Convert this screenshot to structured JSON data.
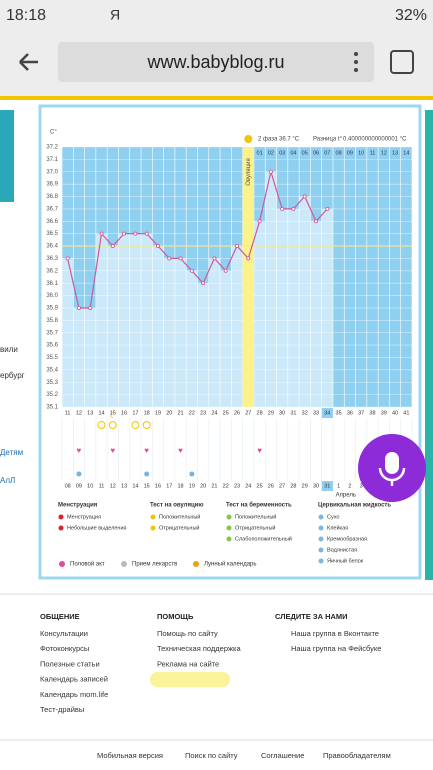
{
  "status_bar": {
    "time": "18:18",
    "carrier": "Я",
    "battery": "32%"
  },
  "browser": {
    "url": "www.babyblog.ru"
  },
  "left_fragments": [
    "вили",
    "ербург",
    "Детям",
    "АлЛ"
  ],
  "chart": {
    "type": "line",
    "y_unit": "C°",
    "phase_label": "2 фаза",
    "phase_temp": "36.7 °C",
    "diff_label": "Разница t°",
    "diff_value": "0.400000000000001 °C",
    "ovulation_label": "Овуляция",
    "days": [
      11,
      12,
      13,
      14,
      15,
      16,
      17,
      18,
      19,
      20,
      21,
      22,
      23,
      24,
      25,
      26,
      27,
      28,
      29,
      30,
      31,
      32,
      33,
      34,
      35,
      36,
      37,
      38,
      39,
      40,
      41
    ],
    "phase_days": [
      "01",
      "02",
      "03",
      "04",
      "05",
      "06",
      "07",
      "08",
      "09",
      "10",
      "11",
      "12",
      "13",
      "14"
    ],
    "dates": [
      "08",
      "09",
      "10",
      "11",
      "12",
      "13",
      "14",
      "15",
      "16",
      "17",
      "18",
      "19",
      "20",
      "21",
      "22",
      "23",
      "24",
      "25",
      "26",
      "27",
      "28",
      "29",
      "30",
      "31",
      "1",
      "2",
      "3",
      "4",
      "5",
      "6",
      "7"
    ],
    "month_label": "Апрель",
    "temps": [
      36.3,
      35.9,
      35.9,
      36.5,
      36.4,
      36.5,
      36.5,
      36.5,
      36.4,
      36.3,
      36.3,
      36.2,
      36.1,
      36.3,
      36.2,
      36.4,
      36.3,
      36.6,
      37.0,
      36.7,
      36.7,
      36.8,
      36.6,
      36.7
    ],
    "ylim": [
      35.1,
      37.2
    ],
    "yticks": [
      37.2,
      37.1,
      {
        "value": 37.0,
        "label": "37.0"
      },
      36.9,
      36.8,
      36.7,
      36.6,
      36.5,
      36.4,
      36.3,
      36.2,
      36.1,
      {
        "value": 36.0,
        "label": "36.0"
      },
      35.9,
      35.8,
      35.7,
      35.6,
      35.5,
      35.4,
      35.3,
      35.2,
      35.1
    ],
    "coverline": 36.4,
    "ovulation_day": 27,
    "current_day": 34,
    "line_color": "#d0579a"
  },
  "legend": {
    "groups": [
      {
        "title": "Менструация",
        "items": [
          "Менструация",
          "Небольшие выделения"
        ]
      },
      {
        "title": "Тест на овуляцию",
        "items": [
          "Положительный",
          "Отрицательный"
        ]
      },
      {
        "title": "Тест на беременность",
        "items": [
          "Положительный",
          "Отрицательный",
          "Слабоположительный"
        ]
      },
      {
        "title": "Цервикальная жидкость",
        "items": [
          "Сухо",
          "Клейкая",
          "Кремообразная",
          "Водянистая",
          "Яичный белок"
        ]
      }
    ],
    "extra": [
      "Половой акт",
      "Прием лекарств",
      "Лунный календарь"
    ]
  },
  "footer": {
    "columns": [
      {
        "title": "ОБЩЕНИЕ",
        "links": [
          "Консультации",
          "Фотоконкурсы",
          "Полезные статьи",
          "Календарь записей",
          "Календарь mom.life",
          "Тест-драйвы"
        ]
      },
      {
        "title": "ПОМОЩЬ",
        "links": [
          "Помощь по сайту",
          "Техническая поддержка",
          "Реклама на сайте"
        ]
      },
      {
        "title": "СЛЕДИТЕ ЗА НАМИ",
        "links": [
          "Наша группа в Вконтакте",
          "Наша группа на Фейсбуке"
        ]
      }
    ],
    "bottom": [
      "Мобильная версия",
      "Поиск по сайту",
      "Соглашение",
      "Правообладателям"
    ]
  }
}
